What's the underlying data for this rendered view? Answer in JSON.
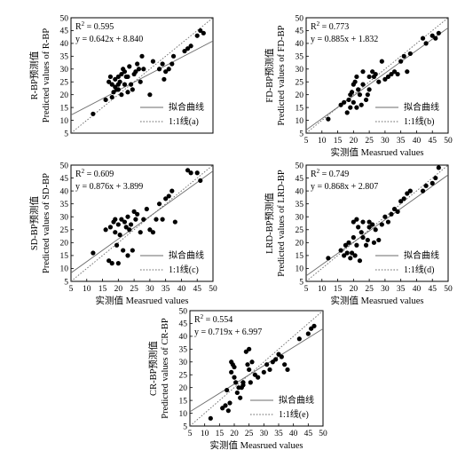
{
  "chart_data": [
    {
      "type": "scatter",
      "r2_label": "R",
      "r2_value": " = 0.595",
      "equation": "y = 0.642x + 8.840",
      "fit": {
        "slope": 0.642,
        "intercept": 8.84
      },
      "ylabel_cn": "R-BP预测值",
      "ylabel_en": "Predicted values of R-BP",
      "xlabel": "",
      "legend": {
        "fit": "拟合曲线",
        "ref": "1:1线(a)"
      },
      "xlim": [
        5,
        50
      ],
      "ylim": [
        5,
        50
      ],
      "x_ticks": [],
      "y_ticks": [
        5,
        10,
        15,
        20,
        25,
        30,
        35,
        40,
        45,
        50
      ],
      "points": [
        [
          12,
          12.5
        ],
        [
          16,
          18
        ],
        [
          17,
          25
        ],
        [
          17.5,
          27
        ],
        [
          18,
          24
        ],
        [
          18,
          19
        ],
        [
          18.5,
          21
        ],
        [
          19,
          26
        ],
        [
          19,
          23
        ],
        [
          19.5,
          22
        ],
        [
          20,
          27
        ],
        [
          20,
          24
        ],
        [
          20,
          22
        ],
        [
          20.5,
          25
        ],
        [
          21,
          28
        ],
        [
          21,
          20
        ],
        [
          21.5,
          30
        ],
        [
          22,
          29
        ],
        [
          22,
          24
        ],
        [
          22.5,
          27
        ],
        [
          23,
          27
        ],
        [
          23,
          21
        ],
        [
          23.5,
          31
        ],
        [
          24,
          24
        ],
        [
          24.5,
          22
        ],
        [
          25,
          28
        ],
        [
          25.5,
          29
        ],
        [
          26,
          32
        ],
        [
          26.5,
          30
        ],
        [
          27,
          25
        ],
        [
          27.5,
          35
        ],
        [
          28,
          30
        ],
        [
          30,
          20
        ],
        [
          31,
          33
        ],
        [
          33,
          30
        ],
        [
          34,
          32
        ],
        [
          34.5,
          26
        ],
        [
          35,
          29
        ],
        [
          36,
          30
        ],
        [
          37,
          32
        ],
        [
          37.5,
          35
        ],
        [
          41,
          37
        ],
        [
          42,
          38
        ],
        [
          43,
          39
        ],
        [
          45,
          43
        ],
        [
          46,
          45
        ],
        [
          47,
          44
        ]
      ]
    },
    {
      "type": "scatter",
      "r2_label": "R",
      "r2_value": " = 0.773",
      "equation": "y = 0.885x + 1.832",
      "fit": {
        "slope": 0.885,
        "intercept": 1.832
      },
      "ylabel_cn": "FD-BP预测值",
      "ylabel_en": "Predicted values of FD-BP",
      "xlabel": "实测值 Measrued values",
      "legend": {
        "fit": "拟合曲线",
        "ref": "1:1线(b)"
      },
      "xlim": [
        5,
        50
      ],
      "ylim": [
        5,
        50
      ],
      "x_ticks": [
        5,
        10,
        15,
        20,
        25,
        30,
        35,
        40,
        45,
        50
      ],
      "y_ticks": [
        5,
        10,
        15,
        20,
        25,
        30,
        35,
        40,
        45,
        50
      ],
      "points": [
        [
          12,
          10.5
        ],
        [
          16,
          16
        ],
        [
          17,
          17
        ],
        [
          18,
          13
        ],
        [
          18.5,
          18
        ],
        [
          19,
          15
        ],
        [
          19,
          20
        ],
        [
          19.5,
          21
        ],
        [
          20,
          24
        ],
        [
          20,
          17
        ],
        [
          20.5,
          25
        ],
        [
          21,
          27
        ],
        [
          21,
          15
        ],
        [
          21.5,
          22
        ],
        [
          22,
          20
        ],
        [
          22.5,
          16
        ],
        [
          23,
          24
        ],
        [
          23,
          29
        ],
        [
          24,
          18
        ],
        [
          24.5,
          20
        ],
        [
          25,
          27
        ],
        [
          25,
          22
        ],
        [
          26,
          29
        ],
        [
          26.5,
          27
        ],
        [
          27,
          28
        ],
        [
          28,
          25
        ],
        [
          29,
          33
        ],
        [
          30,
          26
        ],
        [
          31,
          27
        ],
        [
          32,
          28
        ],
        [
          33,
          29
        ],
        [
          34,
          28
        ],
        [
          35,
          33
        ],
        [
          36,
          35
        ],
        [
          37,
          29
        ],
        [
          38,
          36
        ],
        [
          42,
          42
        ],
        [
          43,
          40
        ],
        [
          45,
          43
        ],
        [
          46,
          42
        ],
        [
          47,
          44
        ]
      ]
    },
    {
      "type": "scatter",
      "r2_label": "R",
      "r2_value": " = 0.609",
      "equation": "y = 0.876x + 3.899",
      "fit": {
        "slope": 0.876,
        "intercept": 3.899
      },
      "ylabel_cn": "SD-BP预测值",
      "ylabel_en": "Predicted values of SD-BP",
      "xlabel": "实测值 Measrued values",
      "legend": {
        "fit": "拟合曲线",
        "ref": "1:1线(c)"
      },
      "xlim": [
        5,
        50
      ],
      "ylim": [
        5,
        50
      ],
      "x_ticks": [
        5,
        10,
        15,
        20,
        25,
        30,
        35,
        40,
        45,
        50
      ],
      "y_ticks": [
        5,
        10,
        15,
        20,
        25,
        30,
        35,
        40,
        45,
        50
      ],
      "points": [
        [
          12,
          16
        ],
        [
          16,
          25
        ],
        [
          17,
          13
        ],
        [
          17.5,
          26
        ],
        [
          18,
          12
        ],
        [
          18.5,
          28
        ],
        [
          19,
          29
        ],
        [
          19,
          24
        ],
        [
          19.5,
          19
        ],
        [
          20,
          27
        ],
        [
          20,
          12
        ],
        [
          20.5,
          23
        ],
        [
          21,
          29
        ],
        [
          21.5,
          17
        ],
        [
          22,
          28
        ],
        [
          22.5,
          26
        ],
        [
          23,
          30
        ],
        [
          23,
          15
        ],
        [
          23.5,
          25
        ],
        [
          24,
          27
        ],
        [
          24.5,
          17
        ],
        [
          25,
          32
        ],
        [
          25.5,
          29
        ],
        [
          26,
          31
        ],
        [
          27,
          24
        ],
        [
          28,
          29
        ],
        [
          29,
          33
        ],
        [
          30,
          25
        ],
        [
          31,
          24
        ],
        [
          32,
          29
        ],
        [
          33,
          35
        ],
        [
          34,
          29
        ],
        [
          35,
          37
        ],
        [
          36,
          38
        ],
        [
          37,
          40
        ],
        [
          38,
          28
        ],
        [
          42,
          48
        ],
        [
          43,
          47
        ],
        [
          45,
          47
        ],
        [
          46,
          44
        ]
      ]
    },
    {
      "type": "scatter",
      "r2_label": "R",
      "r2_value": " = 0.749",
      "equation": "y = 0.868x + 2.807",
      "fit": {
        "slope": 0.868,
        "intercept": 2.807
      },
      "ylabel_cn": "LRD-BP预测值",
      "ylabel_en": "Predicted values of LRD-BP",
      "xlabel": "实测值 Measrued values",
      "legend": {
        "fit": "拟合曲线",
        "ref": "1:1线(d)"
      },
      "xlim": [
        5,
        50
      ],
      "ylim": [
        5,
        50
      ],
      "x_ticks": [
        5,
        10,
        15,
        20,
        25,
        30,
        35,
        40,
        45,
        50
      ],
      "y_ticks": [
        5,
        10,
        15,
        20,
        25,
        30,
        35,
        40,
        45,
        50
      ],
      "points": [
        [
          12,
          14
        ],
        [
          16,
          17
        ],
        [
          17,
          15
        ],
        [
          17.5,
          19
        ],
        [
          18,
          16
        ],
        [
          18.5,
          20
        ],
        [
          19,
          14
        ],
        [
          19.5,
          16
        ],
        [
          20,
          22
        ],
        [
          20,
          28
        ],
        [
          20.5,
          15
        ],
        [
          21,
          29
        ],
        [
          21,
          19
        ],
        [
          21.5,
          26
        ],
        [
          22,
          13
        ],
        [
          22.5,
          24
        ],
        [
          23,
          28
        ],
        [
          23,
          22
        ],
        [
          24,
          19
        ],
        [
          24.5,
          21
        ],
        [
          25,
          26
        ],
        [
          25,
          28
        ],
        [
          26,
          27
        ],
        [
          26.5,
          20
        ],
        [
          27,
          25
        ],
        [
          28,
          21
        ],
        [
          29,
          27
        ],
        [
          30,
          30
        ],
        [
          31,
          28
        ],
        [
          32,
          31
        ],
        [
          33,
          33
        ],
        [
          34,
          32
        ],
        [
          35,
          36
        ],
        [
          36,
          37
        ],
        [
          37,
          39
        ],
        [
          38,
          40
        ],
        [
          42,
          40
        ],
        [
          43,
          42
        ],
        [
          45,
          43
        ],
        [
          46,
          45
        ],
        [
          47,
          49
        ]
      ]
    },
    {
      "type": "scatter",
      "r2_label": "R",
      "r2_value": " = 0.554",
      "equation": "y = 0.719x + 6.997",
      "fit": {
        "slope": 0.719,
        "intercept": 6.997
      },
      "ylabel_cn": "CR-BP预测值",
      "ylabel_en": "Predicted values of CR-BP",
      "xlabel": "实测值 Measrued values",
      "legend": {
        "fit": "拟合曲线",
        "ref": "1:1线(e)"
      },
      "xlim": [
        5,
        50
      ],
      "ylim": [
        5,
        50
      ],
      "x_ticks": [
        5,
        10,
        15,
        20,
        25,
        30,
        35,
        40,
        45,
        50
      ],
      "y_ticks": [
        5,
        10,
        15,
        20,
        25,
        30,
        35,
        40,
        45,
        50
      ],
      "points": [
        [
          12,
          8
        ],
        [
          16,
          12
        ],
        [
          17,
          13
        ],
        [
          17.5,
          19
        ],
        [
          18,
          11
        ],
        [
          18.5,
          14
        ],
        [
          19,
          30
        ],
        [
          19,
          26
        ],
        [
          19.5,
          29
        ],
        [
          20,
          28
        ],
        [
          20,
          24
        ],
        [
          20.5,
          22
        ],
        [
          21,
          18
        ],
        [
          21.5,
          20
        ],
        [
          22,
          16
        ],
        [
          22.5,
          20
        ],
        [
          23,
          22
        ],
        [
          23,
          21
        ],
        [
          24,
          34
        ],
        [
          24.5,
          29
        ],
        [
          25,
          35
        ],
        [
          25,
          27
        ],
        [
          25.5,
          22
        ],
        [
          26,
          30
        ],
        [
          27,
          25
        ],
        [
          28,
          24
        ],
        [
          30,
          26
        ],
        [
          31,
          29
        ],
        [
          32,
          27
        ],
        [
          33,
          30
        ],
        [
          34,
          31
        ],
        [
          35,
          33
        ],
        [
          36,
          32
        ],
        [
          37,
          29
        ],
        [
          38,
          27
        ],
        [
          42,
          39
        ],
        [
          45,
          41
        ],
        [
          46,
          43
        ],
        [
          47,
          44
        ]
      ]
    }
  ]
}
